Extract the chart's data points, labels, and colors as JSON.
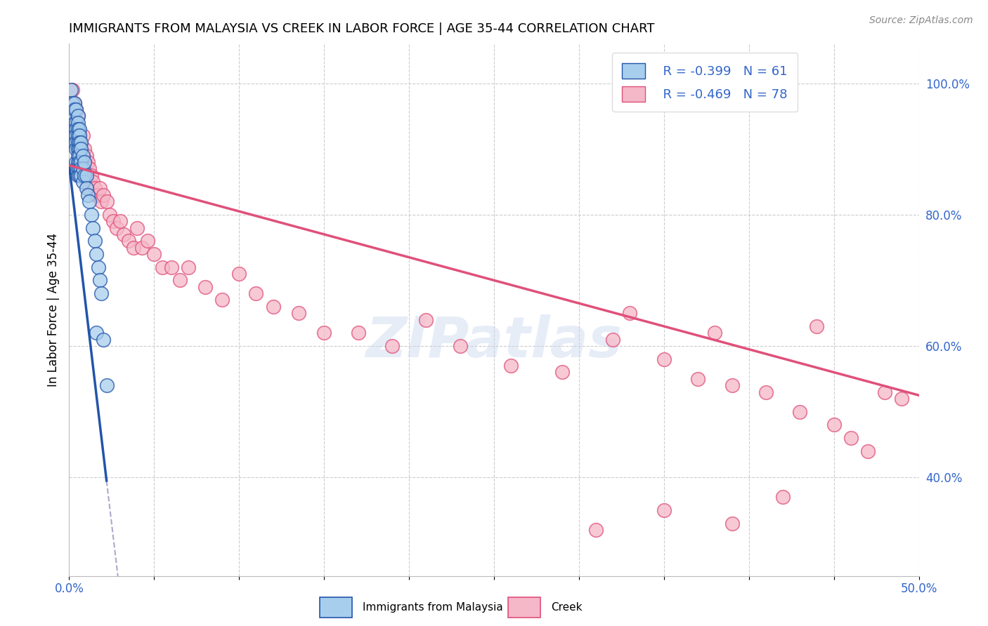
{
  "title": "IMMIGRANTS FROM MALAYSIA VS CREEK IN LABOR FORCE | AGE 35-44 CORRELATION CHART",
  "source": "Source: ZipAtlas.com",
  "ylabel": "In Labor Force | Age 35-44",
  "xlim": [
    0.0,
    0.5
  ],
  "ylim": [
    0.25,
    1.06
  ],
  "x_ticks": [
    0.0,
    0.05,
    0.1,
    0.15,
    0.2,
    0.25,
    0.3,
    0.35,
    0.4,
    0.45,
    0.5
  ],
  "x_tick_labels": [
    "0.0%",
    "",
    "",
    "",
    "",
    "",
    "",
    "",
    "",
    "",
    "50.0%"
  ],
  "y_ticks_right": [
    0.4,
    0.6,
    0.8,
    1.0
  ],
  "y_tick_labels_right": [
    "40.0%",
    "60.0%",
    "80.0%",
    "100.0%"
  ],
  "legend_r1": "R = -0.399",
  "legend_n1": "N = 61",
  "legend_r2": "R = -0.469",
  "legend_n2": "N = 78",
  "color_malaysia": "#A8CEED",
  "color_creek": "#F5B8C8",
  "color_malaysia_line": "#2255AA",
  "color_creek_line": "#E0507A",
  "malaysia_x": [
    0.001,
    0.001,
    0.002,
    0.002,
    0.002,
    0.003,
    0.003,
    0.003,
    0.003,
    0.003,
    0.003,
    0.004,
    0.004,
    0.004,
    0.004,
    0.004,
    0.004,
    0.004,
    0.004,
    0.005,
    0.005,
    0.005,
    0.005,
    0.005,
    0.005,
    0.005,
    0.005,
    0.005,
    0.005,
    0.006,
    0.006,
    0.006,
    0.006,
    0.006,
    0.006,
    0.006,
    0.006,
    0.007,
    0.007,
    0.007,
    0.007,
    0.007,
    0.008,
    0.008,
    0.008,
    0.009,
    0.009,
    0.01,
    0.01,
    0.011,
    0.012,
    0.013,
    0.014,
    0.015,
    0.016,
    0.016,
    0.017,
    0.018,
    0.019,
    0.02,
    0.022
  ],
  "malaysia_y": [
    0.99,
    0.96,
    0.97,
    0.95,
    0.92,
    0.97,
    0.96,
    0.94,
    0.93,
    0.92,
    0.91,
    0.96,
    0.94,
    0.93,
    0.92,
    0.91,
    0.9,
    0.88,
    0.87,
    0.95,
    0.94,
    0.93,
    0.92,
    0.91,
    0.9,
    0.89,
    0.88,
    0.87,
    0.86,
    0.93,
    0.92,
    0.91,
    0.9,
    0.89,
    0.88,
    0.87,
    0.86,
    0.91,
    0.9,
    0.88,
    0.87,
    0.86,
    0.89,
    0.87,
    0.85,
    0.88,
    0.86,
    0.86,
    0.84,
    0.83,
    0.82,
    0.8,
    0.78,
    0.76,
    0.74,
    0.62,
    0.72,
    0.7,
    0.68,
    0.61,
    0.54
  ],
  "creek_x": [
    0.002,
    0.003,
    0.003,
    0.004,
    0.004,
    0.005,
    0.005,
    0.005,
    0.006,
    0.006,
    0.007,
    0.007,
    0.008,
    0.008,
    0.008,
    0.009,
    0.009,
    0.01,
    0.01,
    0.011,
    0.011,
    0.012,
    0.012,
    0.013,
    0.014,
    0.015,
    0.016,
    0.017,
    0.018,
    0.019,
    0.02,
    0.022,
    0.024,
    0.026,
    0.028,
    0.03,
    0.032,
    0.035,
    0.038,
    0.04,
    0.043,
    0.046,
    0.05,
    0.055,
    0.06,
    0.065,
    0.07,
    0.08,
    0.09,
    0.1,
    0.11,
    0.12,
    0.135,
    0.15,
    0.17,
    0.19,
    0.21,
    0.23,
    0.26,
    0.29,
    0.32,
    0.35,
    0.37,
    0.39,
    0.41,
    0.43,
    0.45,
    0.46,
    0.47,
    0.48,
    0.49,
    0.33,
    0.38,
    0.42,
    0.44,
    0.39,
    0.35,
    0.31
  ],
  "creek_y": [
    0.99,
    0.97,
    0.95,
    0.96,
    0.93,
    0.95,
    0.93,
    0.9,
    0.92,
    0.89,
    0.91,
    0.88,
    0.92,
    0.89,
    0.86,
    0.9,
    0.87,
    0.89,
    0.86,
    0.88,
    0.85,
    0.87,
    0.84,
    0.86,
    0.85,
    0.84,
    0.83,
    0.83,
    0.84,
    0.82,
    0.83,
    0.82,
    0.8,
    0.79,
    0.78,
    0.79,
    0.77,
    0.76,
    0.75,
    0.78,
    0.75,
    0.76,
    0.74,
    0.72,
    0.72,
    0.7,
    0.72,
    0.69,
    0.67,
    0.71,
    0.68,
    0.66,
    0.65,
    0.62,
    0.62,
    0.6,
    0.64,
    0.6,
    0.57,
    0.56,
    0.61,
    0.58,
    0.55,
    0.54,
    0.53,
    0.5,
    0.48,
    0.46,
    0.44,
    0.53,
    0.52,
    0.65,
    0.62,
    0.37,
    0.63,
    0.33,
    0.35,
    0.32
  ],
  "blue_line_x0": 0.0,
  "blue_line_y0": 0.875,
  "blue_line_x1": 0.022,
  "blue_line_y1": 0.395,
  "pink_line_x0": 0.0,
  "pink_line_y0": 0.875,
  "pink_line_x1": 0.5,
  "pink_line_y1": 0.525
}
